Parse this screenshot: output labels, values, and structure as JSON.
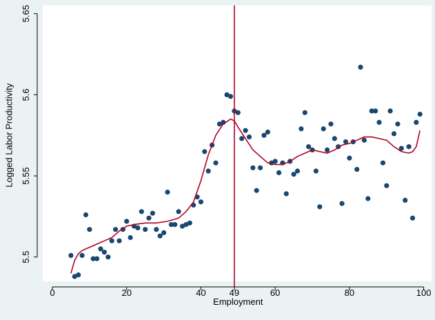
{
  "chart_data": {
    "type": "scatter",
    "xlabel": "Employment",
    "ylabel": "Logged Labor Productivity",
    "xlim": [
      0,
      101
    ],
    "ylim": [
      5.485,
      5.655
    ],
    "x_ticks": [
      {
        "value": 0,
        "label": "0"
      },
      {
        "value": 20,
        "label": "20"
      },
      {
        "value": 40,
        "label": "40"
      },
      {
        "value": 49,
        "label": "49"
      },
      {
        "value": 60,
        "label": "60"
      },
      {
        "value": 80,
        "label": "80"
      },
      {
        "value": 100,
        "label": "100"
      }
    ],
    "y_ticks": [
      {
        "value": 5.5,
        "label": "5.5"
      },
      {
        "value": 5.55,
        "label": "5.55"
      },
      {
        "value": 5.6,
        "label": "5.6"
      },
      {
        "value": 5.65,
        "label": "5.65"
      }
    ],
    "vline": 49,
    "grid": false,
    "colors": {
      "points": "#1a476f",
      "fit": "#b00020",
      "vline": "#b00020",
      "plot_bg": "#ffffff",
      "outer_bg": "#eaf2f3"
    },
    "points": [
      [
        5,
        5.501
      ],
      [
        6,
        5.488
      ],
      [
        7,
        5.489
      ],
      [
        8,
        5.501
      ],
      [
        9,
        5.526
      ],
      [
        10,
        5.517
      ],
      [
        11,
        5.499
      ],
      [
        12,
        5.499
      ],
      [
        13,
        5.505
      ],
      [
        14,
        5.503
      ],
      [
        15,
        5.5
      ],
      [
        16,
        5.51
      ],
      [
        17,
        5.517
      ],
      [
        18,
        5.51
      ],
      [
        19,
        5.517
      ],
      [
        20,
        5.522
      ],
      [
        21,
        5.512
      ],
      [
        22,
        5.519
      ],
      [
        23,
        5.518
      ],
      [
        24,
        5.528
      ],
      [
        25,
        5.517
      ],
      [
        26,
        5.524
      ],
      [
        27,
        5.527
      ],
      [
        28,
        5.517
      ],
      [
        29,
        5.513
      ],
      [
        30,
        5.515
      ],
      [
        31,
        5.54
      ],
      [
        32,
        5.52
      ],
      [
        33,
        5.52
      ],
      [
        34,
        5.528
      ],
      [
        35,
        5.519
      ],
      [
        36,
        5.52
      ],
      [
        37,
        5.521
      ],
      [
        38,
        5.532
      ],
      [
        39,
        5.537
      ],
      [
        40,
        5.534
      ],
      [
        41,
        5.565
      ],
      [
        42,
        5.553
      ],
      [
        43,
        5.569
      ],
      [
        44,
        5.558
      ],
      [
        45,
        5.582
      ],
      [
        46,
        5.583
      ],
      [
        47,
        5.6
      ],
      [
        48,
        5.599
      ],
      [
        49,
        5.59
      ],
      [
        50,
        5.589
      ],
      [
        51,
        5.573
      ],
      [
        52,
        5.578
      ],
      [
        53,
        5.574
      ],
      [
        54,
        5.555
      ],
      [
        55,
        5.541
      ],
      [
        56,
        5.555
      ],
      [
        57,
        5.575
      ],
      [
        58,
        5.577
      ],
      [
        59,
        5.558
      ],
      [
        60,
        5.559
      ],
      [
        61,
        5.552
      ],
      [
        62,
        5.558
      ],
      [
        63,
        5.539
      ],
      [
        64,
        5.559
      ],
      [
        65,
        5.551
      ],
      [
        66,
        5.553
      ],
      [
        67,
        5.579
      ],
      [
        68,
        5.589
      ],
      [
        69,
        5.568
      ],
      [
        70,
        5.566
      ],
      [
        71,
        5.553
      ],
      [
        72,
        5.531
      ],
      [
        73,
        5.579
      ],
      [
        74,
        5.566
      ],
      [
        75,
        5.582
      ],
      [
        76,
        5.573
      ],
      [
        77,
        5.568
      ],
      [
        78,
        5.533
      ],
      [
        79,
        5.571
      ],
      [
        80,
        5.561
      ],
      [
        81,
        5.571
      ],
      [
        82,
        5.554
      ],
      [
        83,
        5.617
      ],
      [
        84,
        5.572
      ],
      [
        85,
        5.536
      ],
      [
        86,
        5.59
      ],
      [
        87,
        5.59
      ],
      [
        88,
        5.583
      ],
      [
        89,
        5.558
      ],
      [
        90,
        5.544
      ],
      [
        91,
        5.59
      ],
      [
        92,
        5.576
      ],
      [
        93,
        5.582
      ],
      [
        94,
        5.567
      ],
      [
        95,
        5.535
      ],
      [
        96,
        5.568
      ],
      [
        97,
        5.524
      ],
      [
        98,
        5.583
      ],
      [
        99,
        5.588
      ]
    ],
    "fit_line": [
      [
        5,
        5.49
      ],
      [
        6,
        5.498
      ],
      [
        7,
        5.502
      ],
      [
        8,
        5.504
      ],
      [
        10,
        5.506
      ],
      [
        12,
        5.508
      ],
      [
        14,
        5.51
      ],
      [
        16,
        5.512
      ],
      [
        18,
        5.516
      ],
      [
        20,
        5.519
      ],
      [
        22,
        5.52
      ],
      [
        25,
        5.521
      ],
      [
        28,
        5.521
      ],
      [
        31,
        5.522
      ],
      [
        34,
        5.524
      ],
      [
        36,
        5.528
      ],
      [
        38,
        5.534
      ],
      [
        40,
        5.547
      ],
      [
        42,
        5.563
      ],
      [
        44,
        5.575
      ],
      [
        46,
        5.582
      ],
      [
        48,
        5.585
      ],
      [
        49,
        5.584
      ],
      [
        50,
        5.58
      ],
      [
        52,
        5.573
      ],
      [
        54,
        5.566
      ],
      [
        56,
        5.562
      ],
      [
        58,
        5.558
      ],
      [
        60,
        5.557
      ],
      [
        62,
        5.557
      ],
      [
        64,
        5.559
      ],
      [
        66,
        5.562
      ],
      [
        68,
        5.564
      ],
      [
        70,
        5.566
      ],
      [
        72,
        5.565
      ],
      [
        74,
        5.564
      ],
      [
        76,
        5.566
      ],
      [
        78,
        5.569
      ],
      [
        80,
        5.57
      ],
      [
        82,
        5.572
      ],
      [
        84,
        5.574
      ],
      [
        86,
        5.574
      ],
      [
        88,
        5.573
      ],
      [
        90,
        5.572
      ],
      [
        92,
        5.568
      ],
      [
        94,
        5.565
      ],
      [
        96,
        5.564
      ],
      [
        97,
        5.565
      ],
      [
        98,
        5.568
      ],
      [
        99,
        5.578
      ]
    ]
  }
}
